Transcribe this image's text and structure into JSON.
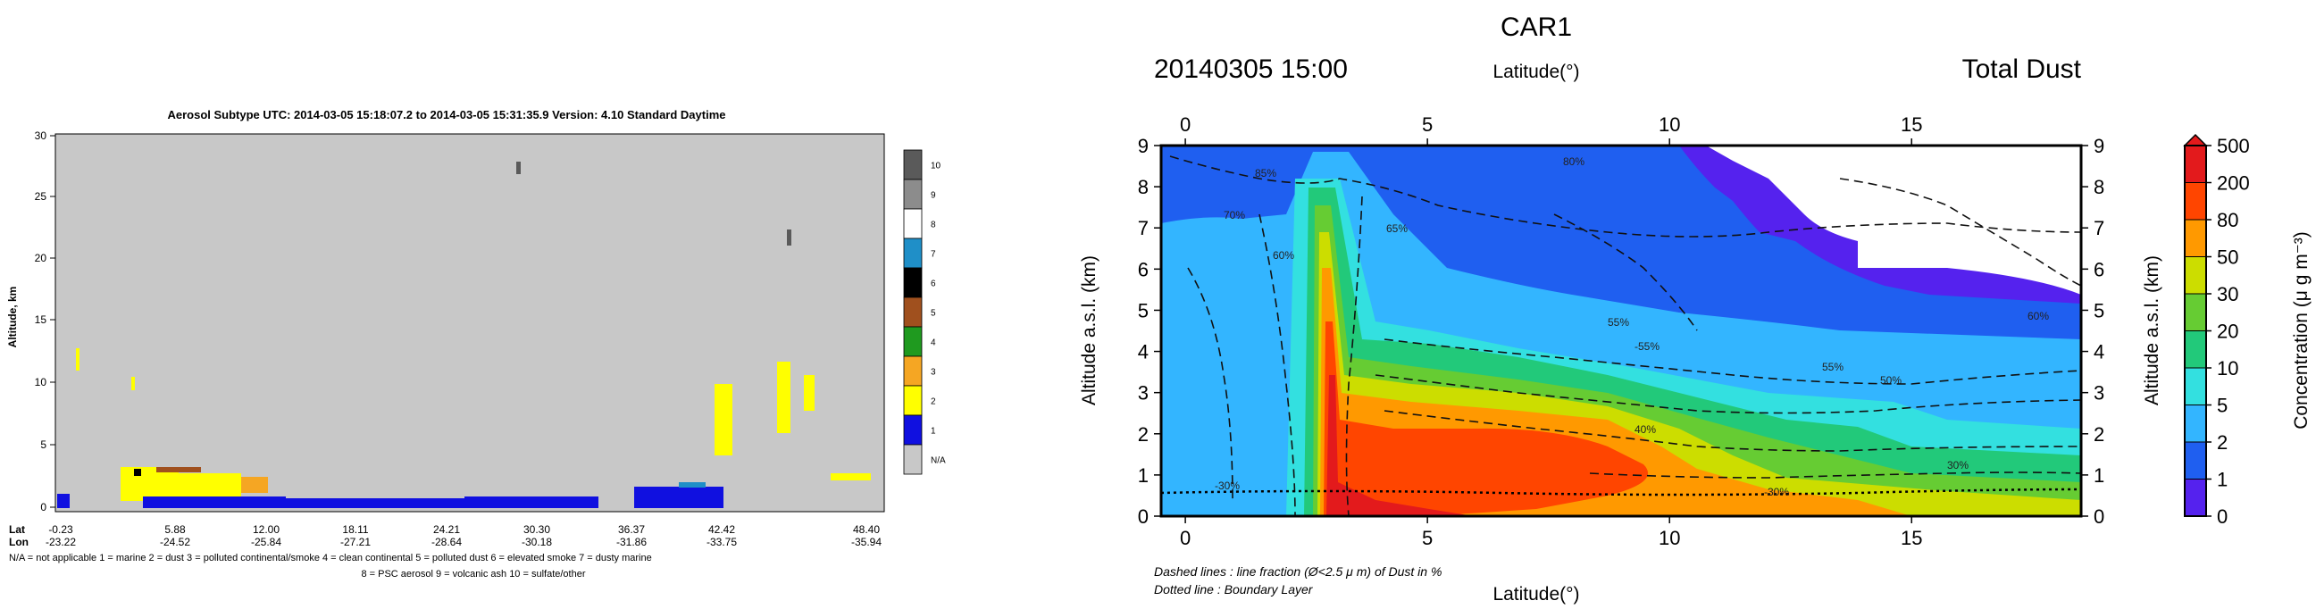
{
  "left": {
    "title": "Aerosol Subtype   UTC:  2014-03-05   15:18:07.2  to  2014-03-05   15:31:35.9   Version: 4.10  Standard Daytime",
    "ylabel": "Altitude, km",
    "yticks": [
      0,
      5,
      10,
      15,
      20,
      25,
      30
    ],
    "row_labels": [
      "Lat",
      "Lon"
    ],
    "lat_ticks": [
      "-0.23",
      "5.88",
      "12.00",
      "18.11",
      "24.21",
      "30.30",
      "36.37",
      "42.42",
      "48.40"
    ],
    "lon_ticks": [
      "-23.22",
      "-24.52",
      "-25.84",
      "-27.21",
      "-28.64",
      "-30.18",
      "-31.86",
      "-33.75",
      "-35.94"
    ],
    "legend_line1": "N/A = not applicable      1 = marine      2 = dust      3 = polluted continental/smoke      4 = clean continental      5 = polluted dust      6 = elevated smoke      7 = dusty marine",
    "legend_line2": "8 = PSC aerosol      9 = volcanic ash      10 = sulfate/other",
    "colorbar": [
      {
        "label": "10",
        "color": "#5a5a5a"
      },
      {
        "label": "9",
        "color": "#8c8c8c"
      },
      {
        "label": "8",
        "color": "#ffffff"
      },
      {
        "label": "7",
        "color": "#1f8fc8"
      },
      {
        "label": "6",
        "color": "#000000"
      },
      {
        "label": "5",
        "color": "#a0501e"
      },
      {
        "label": "4",
        "color": "#1f9a1f"
      },
      {
        "label": "3",
        "color": "#f5a623"
      },
      {
        "label": "2",
        "color": "#ffff00"
      },
      {
        "label": "1",
        "color": "#1010e0"
      },
      {
        "label": "N/A",
        "color": "#c8c8c8"
      }
    ]
  },
  "right": {
    "title": "CAR1",
    "datetime": "20140305 15:00",
    "variable": "Total Dust",
    "xlabel_top": "Latitude(°)",
    "xlabel_bottom": "Latitude(°)",
    "ylabel": "Altitude a.s.l. (km)",
    "xticks": [
      "0",
      "5",
      "10",
      "15"
    ],
    "yticks": [
      "0",
      "1",
      "2",
      "3",
      "4",
      "5",
      "6",
      "7",
      "8",
      "9"
    ],
    "colorbar_label": "Concentration (μ g m⁻³)",
    "colorbar": [
      {
        "label": "500",
        "color": "#e31a1c"
      },
      {
        "label": "200",
        "color": "#ff4500"
      },
      {
        "label": "80",
        "color": "#ff9900"
      },
      {
        "label": "50",
        "color": "#ccdd00"
      },
      {
        "label": "30",
        "color": "#66cc33"
      },
      {
        "label": "20",
        "color": "#22c97a"
      },
      {
        "label": "10",
        "color": "#33e0e0"
      },
      {
        "label": "5",
        "color": "#33b5ff"
      },
      {
        "label": "2",
        "color": "#1f5ff0"
      },
      {
        "label": "1",
        "color": "#5522ee"
      },
      {
        "label": "0",
        "color": "#ffffff"
      }
    ],
    "contour_labels": [
      "85%",
      "80%",
      "70%",
      "65%",
      "55%",
      "60%",
      "-55%",
      "55%",
      "50%",
      "40%",
      "30%",
      "-30%",
      "-30%",
      "60%"
    ],
    "note1": "Dashed lines : line fraction (Ø<2.5 μ m) of Dust in %",
    "note2": "Dotted line : Boundary Layer"
  },
  "chart_data": [
    {
      "type": "heatmap",
      "title": "Aerosol Subtype   UTC:  2014-03-05   15:18:07.2  to  2014-03-05   15:31:35.9   Version: 4.10  Standard Daytime",
      "xlabel": "Lat / Lon",
      "ylabel": "Altitude, km",
      "ylim": [
        0,
        30
      ],
      "x_lat": [
        -0.23,
        5.88,
        12.0,
        18.11,
        24.21,
        30.3,
        36.37,
        42.42,
        48.4
      ],
      "x_lon": [
        -23.22,
        -24.52,
        -25.84,
        -27.21,
        -28.64,
        -30.18,
        -31.86,
        -33.75,
        -35.94
      ],
      "categories": [
        "N/A",
        "1",
        "2",
        "3",
        "4",
        "5",
        "6",
        "7",
        "8",
        "9",
        "10"
      ]
    },
    {
      "type": "heatmap",
      "title": "CAR1",
      "xlabel": "Latitude(°)",
      "ylabel": "Altitude a.s.l. (km)",
      "xlim": [
        -0.5,
        18.5
      ],
      "ylim": [
        0,
        9
      ],
      "levels": [
        0,
        1,
        2,
        5,
        10,
        20,
        30,
        50,
        80,
        200,
        500
      ]
    }
  ]
}
